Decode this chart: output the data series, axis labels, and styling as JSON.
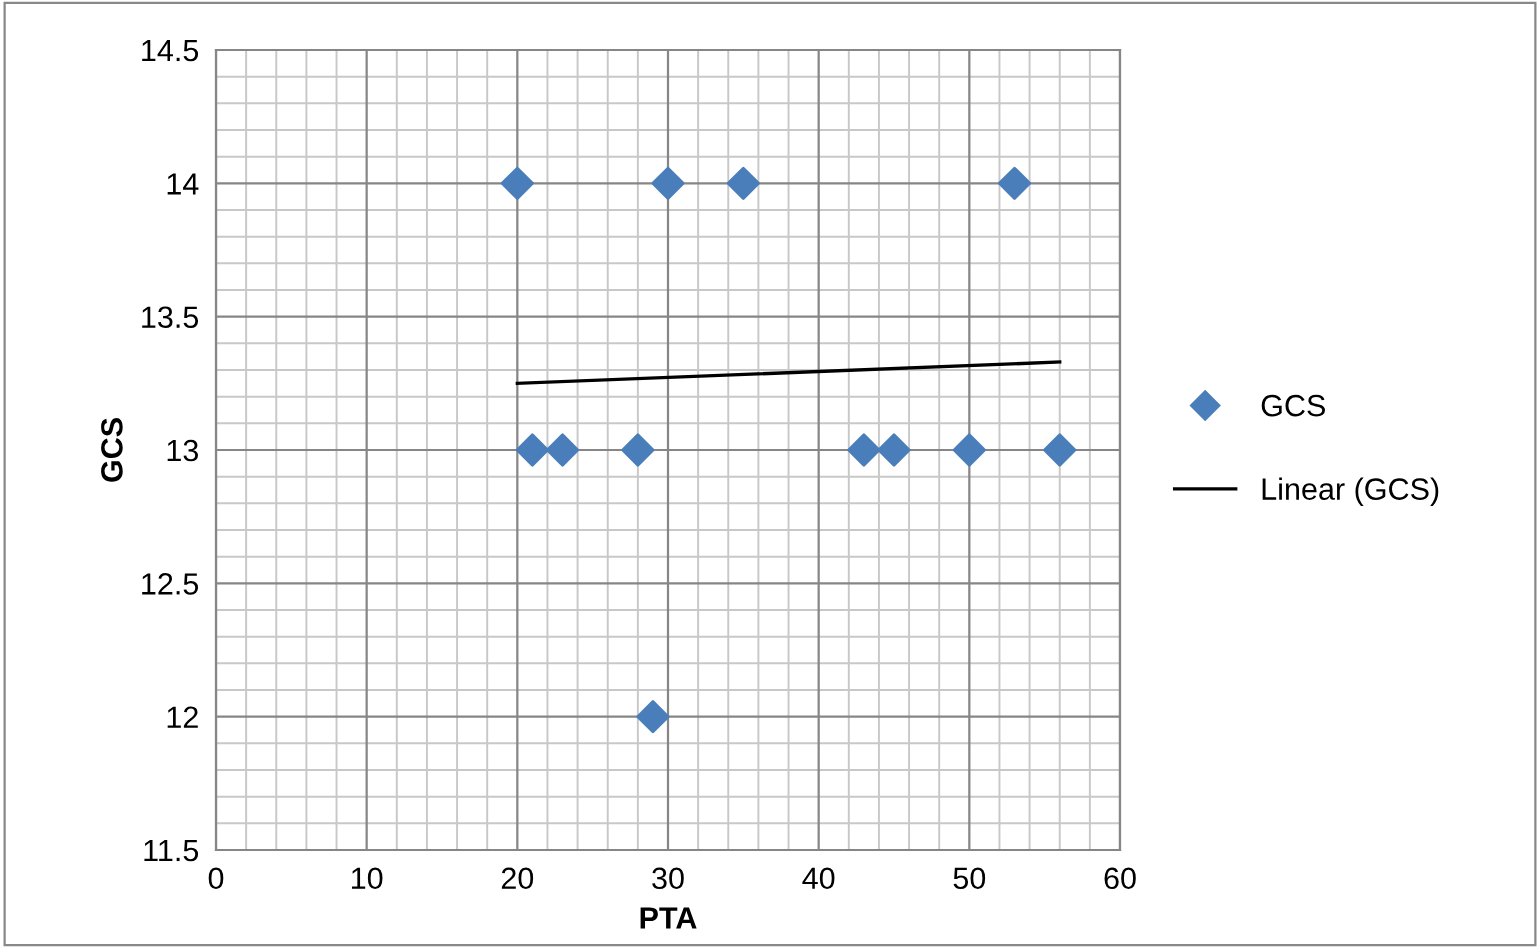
{
  "chart_data": {
    "type": "scatter",
    "xlabel": "PTA",
    "ylabel": "GCS",
    "series": [
      {
        "name": "GCS",
        "color": "#4a7ebb",
        "marker": "diamond",
        "x": [
          20,
          30,
          35,
          53,
          21,
          23,
          28,
          43,
          45,
          50,
          56,
          29
        ],
        "values": [
          14,
          14,
          14,
          14,
          13,
          13,
          13,
          13,
          13,
          13,
          13,
          12
        ]
      },
      {
        "name": "Linear (GCS)",
        "type": "line",
        "color": "#000000",
        "line_style": "solid",
        "x": [
          20,
          56
        ],
        "values": [
          13.25,
          13.33
        ]
      }
    ],
    "xlim": [
      0,
      60
    ],
    "xticks": [
      0,
      10,
      20,
      30,
      40,
      50,
      60
    ],
    "ylim": [
      11.5,
      14.5
    ],
    "yticks": [
      11.5,
      12,
      12.5,
      13,
      13.5,
      14,
      14.5
    ],
    "grid": true,
    "legend": "right"
  }
}
